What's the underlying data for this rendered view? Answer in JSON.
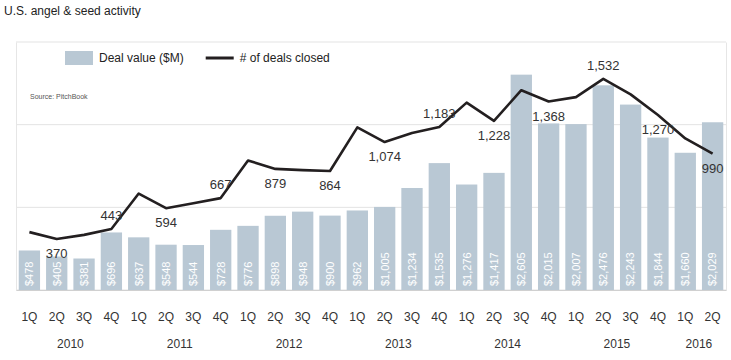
{
  "chart_data": {
    "type": "bar",
    "title": "U.S. angel & seed activity",
    "annotations": [
      "Source: PitchBook"
    ],
    "categories": [
      "1Q",
      "2Q",
      "3Q",
      "4Q",
      "1Q",
      "2Q",
      "3Q",
      "4Q",
      "1Q",
      "2Q",
      "3Q",
      "4Q",
      "1Q",
      "2Q",
      "3Q",
      "4Q",
      "1Q",
      "2Q",
      "3Q",
      "4Q",
      "1Q",
      "2Q",
      "3Q",
      "4Q",
      "1Q",
      "2Q"
    ],
    "x_groups": [
      {
        "label": "2010",
        "start": 0,
        "end": 3
      },
      {
        "label": "2011",
        "start": 4,
        "end": 7
      },
      {
        "label": "2012",
        "start": 8,
        "end": 11
      },
      {
        "label": "2013",
        "start": 12,
        "end": 15
      },
      {
        "label": "2014",
        "start": 16,
        "end": 19
      },
      {
        "label": "2015",
        "start": 20,
        "end": 23
      },
      {
        "label": "2016",
        "start": 24,
        "end": 25
      }
    ],
    "series": [
      {
        "name": "Deal value ($M)",
        "type": "bar",
        "color": "#b9c8d4",
        "data_labels": true,
        "values": [
          478,
          405,
          381,
          696,
          637,
          548,
          544,
          728,
          776,
          898,
          948,
          900,
          962,
          1005,
          1234,
          1535,
          1276,
          1417,
          2605,
          2015,
          2007,
          2476,
          2243,
          1844,
          1660,
          2029
        ],
        "value_labels": [
          "$478",
          "$405",
          "$381",
          "$696",
          "$637",
          "$548",
          "$544",
          "$728",
          "$776",
          "$898",
          "$948",
          "$900",
          "$962",
          "$1,005",
          "$1,234",
          "$1,535",
          "$1,276",
          "$1,417",
          "$2,605",
          "$2,015",
          "$2,007",
          "$2,476",
          "$2,243",
          "$1,844",
          "$1,660",
          "$2,029"
        ]
      },
      {
        "name": "# of deals closed",
        "type": "line",
        "axis": "y2",
        "color": "#231f20",
        "data_labels": true,
        "values": [
          420,
          370,
          400,
          443,
          700,
          594,
          630,
          667,
          940,
          879,
          870,
          864,
          1180,
          1074,
          1140,
          1183,
          1360,
          1228,
          1450,
          1368,
          1400,
          1532,
          1420,
          1270,
          1100,
          990
        ],
        "value_labels": [
          null,
          "370",
          null,
          "443",
          null,
          "594",
          null,
          "667",
          null,
          "879",
          null,
          "864",
          null,
          "1,074",
          null,
          "1,183",
          null,
          "1,228",
          null,
          "1,368",
          null,
          "1,532",
          null,
          "1,270",
          null,
          "990"
        ]
      }
    ],
    "ylim": [
      0,
      3000
    ],
    "yticks": [
      0,
      1000,
      2000,
      3000
    ],
    "y2lim": [
      0,
      1800
    ],
    "y2ticks": [
      0,
      600,
      1200,
      1800
    ],
    "grid": true,
    "legend": "top-left",
    "tick_labels": "x"
  }
}
